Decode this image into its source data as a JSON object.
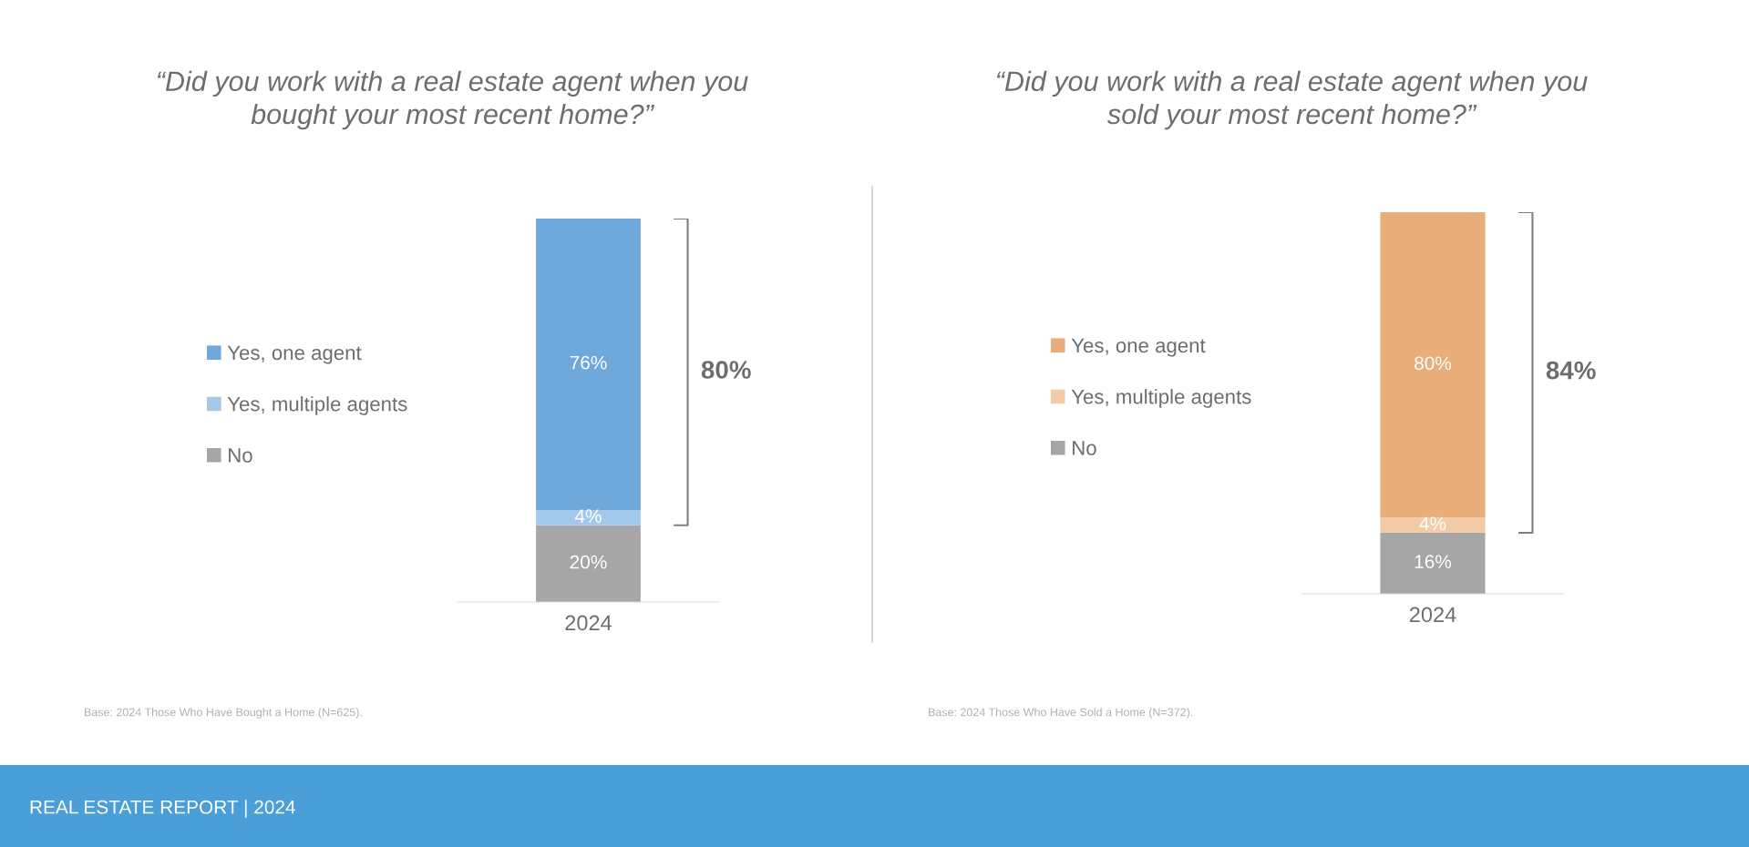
{
  "chart_data": [
    {
      "type": "bar",
      "stacked": true,
      "title": "“Did you work with a real estate agent when you bought your most recent home?”",
      "categories": [
        "2024"
      ],
      "data_labels": true,
      "legend": "left",
      "series": [
        {
          "name": "No",
          "color": "#a6a6a6",
          "values": [
            20
          ],
          "value_labels": [
            "20%"
          ]
        },
        {
          "name": "Yes, multiple agents",
          "color": "#a4c8ec",
          "values": [
            4
          ],
          "value_labels": [
            "4%"
          ]
        },
        {
          "name": "Yes, one agent",
          "color": "#6fa8db",
          "values": [
            76
          ],
          "value_labels": [
            "76%"
          ]
        }
      ],
      "annotations": [
        "80%",
        "Base: 2024 Those Who Have Bought a Home (N=625).",
        "REAL ESTATE REPORT | 2024"
      ]
    },
    {
      "type": "bar",
      "stacked": true,
      "title": "“Did you work with a real estate agent when you sold your most recent home?”",
      "categories": [
        "2024"
      ],
      "data_labels": true,
      "legend": "left",
      "series": [
        {
          "name": "No",
          "color": "#a6a6a6",
          "values": [
            16
          ],
          "value_labels": [
            "16%"
          ]
        },
        {
          "name": "Yes, multiple agents",
          "color": "#f3cba8",
          "values": [
            4
          ],
          "value_labels": [
            "4%"
          ]
        },
        {
          "name": "Yes, one agent",
          "color": "#e8ad78",
          "values": [
            80
          ],
          "value_labels": [
            "80%"
          ]
        }
      ],
      "annotations": [
        "84%",
        "Base: 2024 Those Who Have Sold a Home (N=372)."
      ]
    }
  ]
}
